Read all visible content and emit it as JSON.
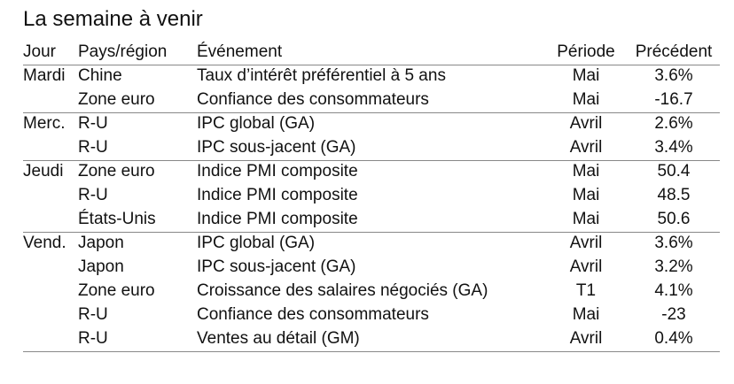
{
  "title": "La semaine à venir",
  "table": {
    "headers": [
      "Jour",
      "Pays/région",
      "Événement",
      "Période",
      "Précédent"
    ],
    "groups": [
      {
        "day": "Mardi",
        "rows": [
          [
            "Chine",
            "Taux d’intérêt préférentiel à 5 ans",
            "Mai",
            "3.6%"
          ],
          [
            "Zone euro",
            "Confiance des consommateurs",
            "Mai",
            "-16.7"
          ]
        ]
      },
      {
        "day": "Merc.",
        "rows": [
          [
            "R-U",
            "IPC global (GA)",
            "Avril",
            "2.6%"
          ],
          [
            "R-U",
            "IPC sous-jacent (GA)",
            "Avril",
            "3.4%"
          ]
        ]
      },
      {
        "day": "Jeudi",
        "rows": [
          [
            "Zone euro",
            "Indice PMI composite",
            "Mai",
            "50.4"
          ],
          [
            "R-U",
            "Indice PMI composite",
            "Mai",
            "48.5"
          ],
          [
            "États-Unis",
            "Indice PMI composite",
            "Mai",
            "50.6"
          ]
        ]
      },
      {
        "day": "Vend.",
        "rows": [
          [
            "Japon",
            "IPC global (GA)",
            "Avril",
            "3.6%"
          ],
          [
            "Japon",
            "IPC sous-jacent (GA)",
            "Avril",
            "3.2%"
          ],
          [
            "Zone euro",
            "Croissance des salaires négociés (GA)",
            "T1",
            "4.1%"
          ],
          [
            "R-U",
            "Confiance des consommateurs",
            "Mai",
            "-23"
          ],
          [
            "R-U",
            "Ventes au détail (GM)",
            "Avril",
            "0.4%"
          ]
        ]
      }
    ]
  }
}
